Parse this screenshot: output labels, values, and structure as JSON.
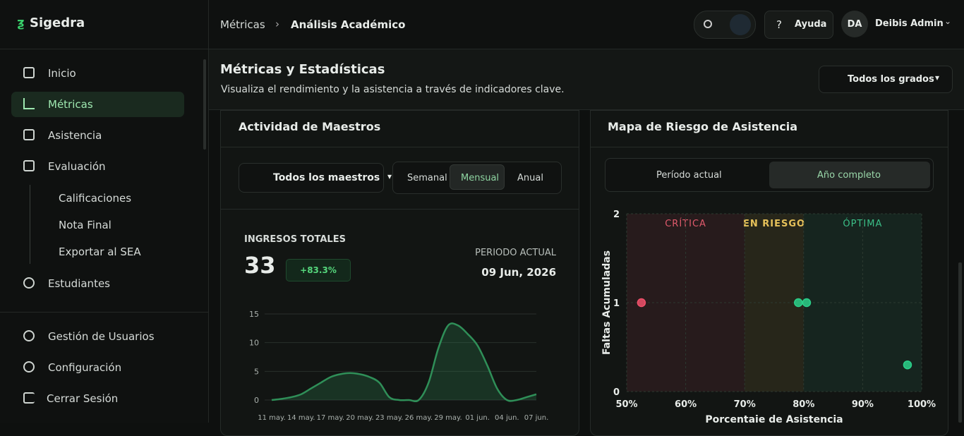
{
  "brand": "Sigedra",
  "nav": {
    "items": [
      "Inicio",
      "Métricas",
      "Asistencia",
      "Evaluación"
    ],
    "active": "Métricas",
    "subitems": [
      "Calificaciones",
      "Nota Final",
      "Exportar al SEA"
    ],
    "more": [
      "Estudiantes"
    ],
    "bottom": [
      "Gestión de Usuarios",
      "Configuración",
      "Cerrar Sesión"
    ]
  },
  "header": {
    "breadcrumb": [
      "Métricas",
      "Análisis Académico"
    ],
    "help": "Ayuda",
    "avatar": "DA",
    "user": "Deibis Admin"
  },
  "page": {
    "title": "Métricas y Estadísticas",
    "subtitle": "Visualiza el rendimiento y la asistencia a través de indicadores clave.",
    "filter": "Todos los grados"
  },
  "cards": [
    {
      "select": "Todos los maestros",
      "tabs": [
        "Semanal",
        "Mensual",
        "Anual"
      ],
      "active_tab": 1,
      "stat_label": "INGRESOS TOTALES",
      "stat_value": 33,
      "stat_change": "+83.3%",
      "period_label": "PERIODO ACTUAL",
      "period_date": "09 Jun, 2026"
    },
    {
      "tabs": [
        "Período actual",
        "Año completo"
      ],
      "active_tab": 1
    }
  ],
  "chart_data": [
    {
      "type": "area",
      "title": "Actividad de Maestros",
      "categories": [
        "11 may.",
        null,
        null,
        "14 may.",
        null,
        null,
        "17 may.",
        null,
        null,
        "20 may.",
        null,
        null,
        "23 may.",
        null,
        null,
        "26 may.",
        null,
        null,
        "29 may.",
        null,
        null,
        "01 jun.",
        null,
        null,
        "04 jun.",
        null,
        null,
        "07 jun."
      ],
      "values": [
        0,
        0.2,
        0.5,
        1,
        2,
        3,
        4,
        4.5,
        4.7,
        4.5,
        4,
        3,
        0.5,
        0,
        0,
        0,
        3,
        9,
        13,
        13,
        11.5,
        9.5,
        6,
        2,
        0,
        0,
        0.5,
        1
      ],
      "color": "#2f8f58",
      "ylim": [
        0,
        15
      ],
      "yticks": [
        0,
        5,
        10,
        15
      ],
      "grid": true
    },
    {
      "type": "scatter",
      "title": "Mapa de Riesgo de Asistencia",
      "x_label": "Porcentaje de Asistencia",
      "y_label": "Faltas Acumuladas",
      "x": [
        52.5,
        79.1,
        80.5,
        97.6
      ],
      "values": [
        1,
        1,
        1,
        0.3
      ],
      "colors": [
        "#f0506a",
        "#2bd08a",
        "#2bd08a",
        "#2bd08a"
      ],
      "xlim": [
        50,
        100
      ],
      "xticks": [
        {
          "value": 50,
          "label": "50%"
        },
        {
          "value": 60,
          "label": "60%"
        },
        {
          "value": 70,
          "label": "70%"
        },
        {
          "value": 80,
          "label": "80%"
        },
        {
          "value": 90,
          "label": "90%"
        },
        {
          "value": 100,
          "label": "100%"
        }
      ],
      "ylim": [
        0,
        2
      ],
      "yticks": [
        0,
        1,
        2
      ],
      "grid": true,
      "zones": [
        {
          "label": "CRÍTICA",
          "from": 50,
          "to": 70,
          "color": "#e05a6c"
        },
        {
          "label": "EN RIESGO",
          "from": 70,
          "to": 80,
          "color": "#e6c15a"
        },
        {
          "label": "ÓPTIMA",
          "from": 80,
          "to": 100,
          "color": "#3bbf87"
        }
      ]
    }
  ]
}
